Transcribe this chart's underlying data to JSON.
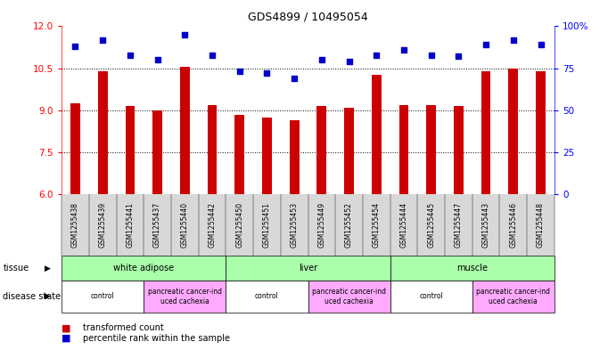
{
  "title": "GDS4899 / 10495054",
  "samples": [
    "GSM1255438",
    "GSM1255439",
    "GSM1255441",
    "GSM1255437",
    "GSM1255440",
    "GSM1255442",
    "GSM1255450",
    "GSM1255451",
    "GSM1255453",
    "GSM1255449",
    "GSM1255452",
    "GSM1255454",
    "GSM1255444",
    "GSM1255445",
    "GSM1255447",
    "GSM1255443",
    "GSM1255446",
    "GSM1255448"
  ],
  "transformed_count": [
    9.25,
    10.4,
    9.15,
    9.0,
    10.55,
    9.2,
    8.85,
    8.75,
    8.65,
    9.15,
    9.1,
    10.25,
    9.2,
    9.2,
    9.15,
    10.4,
    10.5,
    10.4
  ],
  "percentile_rank": [
    88,
    92,
    83,
    80,
    95,
    83,
    73,
    72,
    69,
    80,
    79,
    83,
    86,
    83,
    82,
    89,
    92,
    89
  ],
  "bar_color": "#cc0000",
  "dot_color": "#0000cc",
  "ylim_left": [
    6,
    12
  ],
  "ylim_right": [
    0,
    100
  ],
  "yticks_left": [
    6,
    7.5,
    9,
    10.5,
    12
  ],
  "yticks_right": [
    0,
    25,
    50,
    75,
    100
  ],
  "tissue_labels": [
    "white adipose",
    "liver",
    "muscle"
  ],
  "tissue_ranges": [
    [
      0,
      6
    ],
    [
      6,
      12
    ],
    [
      12,
      18
    ]
  ],
  "tissue_color": "#aaffaa",
  "disease_labels": [
    "control",
    "pancreatic cancer-ind\nuced cachexia",
    "control",
    "pancreatic cancer-ind\nuced cachexia",
    "control",
    "pancreatic cancer-ind\nuced cachexia"
  ],
  "disease_ranges": [
    [
      0,
      3
    ],
    [
      3,
      6
    ],
    [
      6,
      9
    ],
    [
      9,
      12
    ],
    [
      12,
      15
    ],
    [
      15,
      18
    ]
  ],
  "disease_color_control": "#ffffff",
  "disease_color_cancer": "#ffaaff",
  "background_color": "#ffffff",
  "tick_bg_color": "#d8d8d8"
}
